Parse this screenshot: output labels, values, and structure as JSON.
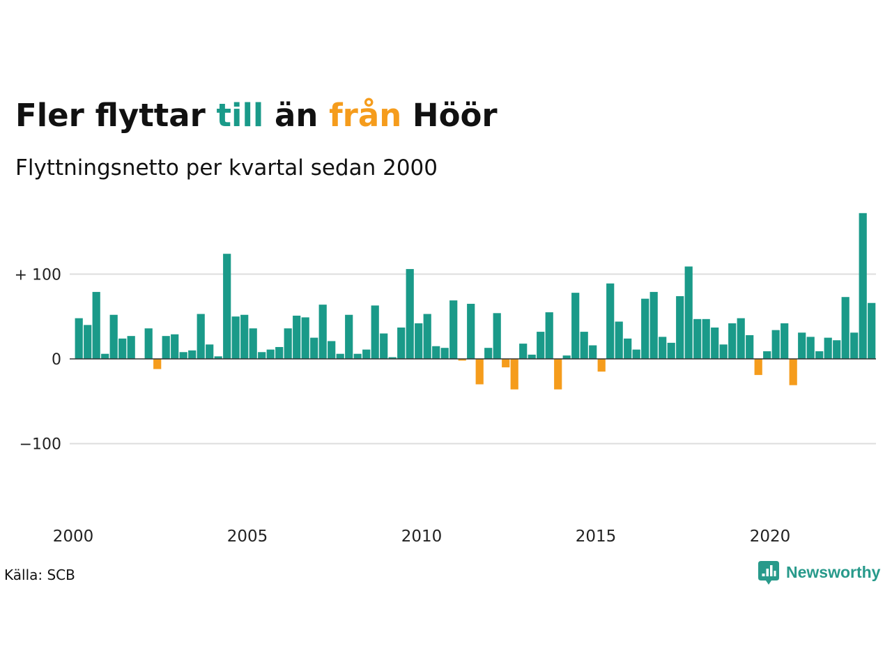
{
  "chart_data": {
    "type": "bar",
    "title": "Fler flyttar till än från Höör",
    "title_highlights": [
      {
        "text": "till",
        "color": "#1a9a89"
      },
      {
        "text": "från",
        "color": "#f59c1c"
      }
    ],
    "subtitle": "Flyttningsnetto per kvartal sedan 2000",
    "xlabel": "",
    "ylabel": "",
    "x": [
      2000,
      2000.25,
      2000.5,
      2000.75,
      2001,
      2001.25,
      2001.5,
      2001.75,
      2002,
      2002.25,
      2002.5,
      2002.75,
      2003,
      2003.25,
      2003.5,
      2003.75,
      2004,
      2004.25,
      2004.5,
      2004.75,
      2005,
      2005.25,
      2005.5,
      2005.75,
      2006,
      2006.25,
      2006.5,
      2006.75,
      2007,
      2007.25,
      2007.5,
      2007.75,
      2008,
      2008.25,
      2008.5,
      2008.75,
      2009,
      2009.25,
      2009.5,
      2009.75,
      2010,
      2010.25,
      2010.5,
      2010.75,
      2011,
      2011.25,
      2011.5,
      2011.75,
      2012,
      2012.25,
      2012.5,
      2012.75,
      2013,
      2013.25,
      2013.5,
      2013.75,
      2014,
      2014.25,
      2014.5,
      2014.75,
      2015,
      2015.25,
      2015.5,
      2015.75,
      2016,
      2016.25,
      2016.5,
      2016.75,
      2017,
      2017.25,
      2017.5,
      2017.75,
      2018,
      2018.25,
      2018.5,
      2018.75,
      2019,
      2019.25,
      2019.5,
      2019.75,
      2020,
      2020.25,
      2020.5,
      2020.75,
      2021,
      2021.25,
      2021.5,
      2021.75,
      2022,
      2022.25,
      2022.5,
      2022.75
    ],
    "values": [
      48,
      40,
      79,
      6,
      52,
      24,
      27,
      0,
      36,
      -12,
      27,
      29,
      8,
      10,
      53,
      17,
      3,
      124,
      50,
      52,
      36,
      8,
      11,
      14,
      36,
      51,
      49,
      25,
      64,
      21,
      6,
      52,
      6,
      11,
      63,
      30,
      2,
      37,
      106,
      42,
      53,
      15,
      13,
      69,
      -2,
      65,
      -30,
      13,
      54,
      -10,
      -36,
      18,
      5,
      32,
      55,
      -36,
      4,
      78,
      32,
      16,
      -15,
      89,
      44,
      24,
      11,
      71,
      79,
      26,
      19,
      74,
      109,
      47,
      47,
      37,
      17,
      42,
      48,
      28,
      -19,
      9,
      34,
      42,
      -31,
      31,
      26,
      9,
      25,
      22,
      73,
      31,
      172,
      66
    ],
    "xlim": [
      2000,
      2023
    ],
    "ylim": [
      -185,
      185
    ],
    "x_ticks": [
      2000,
      2005,
      2010,
      2015,
      2020
    ],
    "x_tick_labels": [
      "2000",
      "2005",
      "2010",
      "2015",
      "2020"
    ],
    "y_ticks": [
      -100,
      0,
      100
    ],
    "y_tick_labels": [
      "−100",
      "0",
      "+ 100"
    ],
    "grid": true,
    "colors": {
      "positive": "#1a9a89",
      "negative": "#f59c1c",
      "gridline": "#dddddd",
      "zero_line": "#333333"
    }
  },
  "source": "Källa: SCB",
  "logo": {
    "text": "Newsworthy",
    "icon": "newsworthy-logo-icon",
    "color": "#289a8b"
  }
}
